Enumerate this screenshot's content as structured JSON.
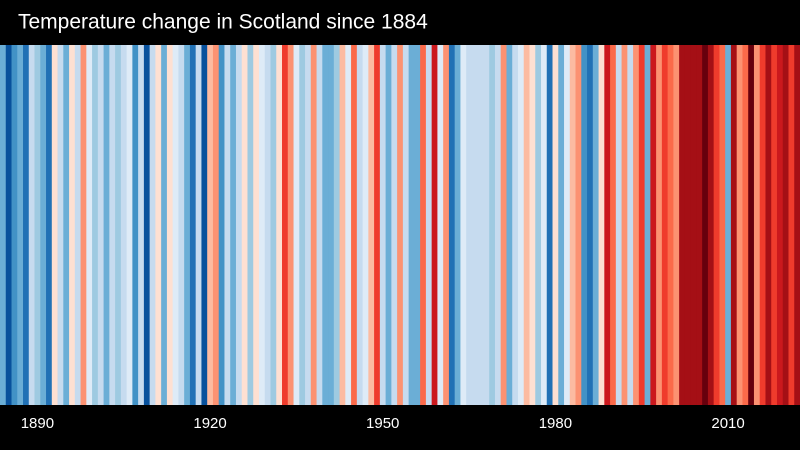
{
  "chart_data": {
    "type": "stripes",
    "title": "Temperature change in Scotland since 1884",
    "x": [
      1884,
      1885,
      1886,
      1887,
      1888,
      1889,
      1890,
      1891,
      1892,
      1893,
      1894,
      1895,
      1896,
      1897,
      1898,
      1899,
      1900,
      1901,
      1902,
      1903,
      1904,
      1905,
      1906,
      1907,
      1908,
      1909,
      1910,
      1911,
      1912,
      1913,
      1914,
      1915,
      1916,
      1917,
      1918,
      1919,
      1920,
      1921,
      1922,
      1923,
      1924,
      1925,
      1926,
      1927,
      1928,
      1929,
      1930,
      1931,
      1932,
      1933,
      1934,
      1935,
      1936,
      1937,
      1938,
      1939,
      1940,
      1941,
      1942,
      1943,
      1944,
      1945,
      1946,
      1947,
      1948,
      1949,
      1950,
      1951,
      1952,
      1953,
      1954,
      1955,
      1956,
      1957,
      1958,
      1959,
      1960,
      1961,
      1962,
      1963,
      1964,
      1965,
      1966,
      1967,
      1968,
      1969,
      1970,
      1971,
      1972,
      1973,
      1974,
      1975,
      1976,
      1977,
      1978,
      1979,
      1980,
      1981,
      1982,
      1983,
      1984,
      1985,
      1986,
      1987,
      1988,
      1989,
      1990,
      1991,
      1992,
      1993,
      1994,
      1995,
      1996,
      1997,
      1998,
      1999,
      2000,
      2001,
      2002,
      2003,
      2004,
      2005,
      2006,
      2007,
      2008,
      2009,
      2010,
      2011,
      2012,
      2013,
      2014,
      2015,
      2016,
      2017,
      2018,
      2019,
      2020,
      2021,
      2022
    ],
    "values": [
      -0.5,
      -0.9,
      -0.7,
      -0.5,
      -0.8,
      -0.3,
      -0.4,
      -0.5,
      -0.8,
      0.1,
      -0.3,
      -0.6,
      0.0,
      -0.2,
      0.3,
      -0.1,
      -0.4,
      -0.3,
      -0.6,
      -0.3,
      -0.4,
      -0.2,
      -0.1,
      -0.7,
      -0.3,
      -0.9,
      -0.3,
      0.1,
      -0.5,
      0.0,
      -0.1,
      -0.3,
      -0.5,
      -0.8,
      -0.2,
      -0.9,
      0.2,
      0.3,
      -0.7,
      -0.3,
      -0.5,
      -0.2,
      0.0,
      -0.4,
      0.1,
      -0.1,
      -0.3,
      -0.4,
      0.05,
      0.6,
      0.3,
      -0.05,
      -0.4,
      -0.2,
      0.4,
      -0.2,
      -0.5,
      -0.6,
      -0.4,
      0.2,
      -0.1,
      0.5,
      -0.2,
      -0.1,
      0.2,
      0.6,
      -0.2,
      -0.6,
      -0.3,
      0.3,
      -0.3,
      -0.5,
      -0.6,
      0.5,
      -0.3,
      0.8,
      -0.1,
      0.3,
      -0.8,
      -0.6,
      -0.1,
      -0.3,
      -0.2,
      -0.3,
      -0.3,
      -0.4,
      -0.2,
      0.3,
      -0.5,
      -0.3,
      -0.1,
      0.2,
      0.1,
      -0.4,
      -0.1,
      -0.8,
      0.0,
      -0.5,
      -0.1,
      0.2,
      0.3,
      -0.7,
      -0.8,
      -0.6,
      0.1,
      0.8,
      0.5,
      -0.2,
      0.3,
      -0.3,
      0.4,
      0.6,
      -0.5,
      0.8,
      0.3,
      0.6,
      0.5,
      0.3,
      0.9,
      1.0,
      1.0,
      1.0,
      1.2,
      1.0,
      0.6,
      0.5,
      -0.5,
      0.9,
      0.3,
      0.5,
      1.1,
      0.4,
      0.7,
      0.9,
      0.7,
      0.8,
      0.9,
      0.7,
      1.0
    ],
    "vlim": [
      -1.2,
      1.2
    ],
    "colors": [
      "#08306b",
      "#08519c",
      "#2171b5",
      "#4292c6",
      "#6baed6",
      "#9ecae1",
      "#c6dbef",
      "#deebf7",
      "#fee0d2",
      "#fcbba1",
      "#fc9272",
      "#fb6a4a",
      "#ef3b2c",
      "#cb181d",
      "#a50f15",
      "#67000d"
    ],
    "xticks": [
      1890,
      1920,
      1950,
      1980,
      2010
    ]
  }
}
